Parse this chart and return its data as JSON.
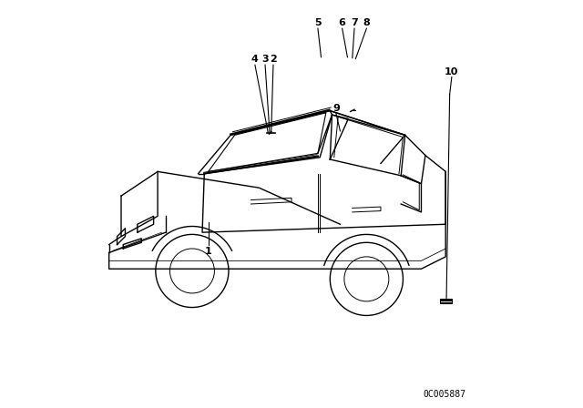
{
  "background_color": "#ffffff",
  "part_code": "0C005887",
  "fig_width": 6.4,
  "fig_height": 4.48,
  "dpi": 100,
  "line_color": "#000000",
  "line_width": 1.0,
  "label_fontsize": 8,
  "code_fontsize": 7
}
